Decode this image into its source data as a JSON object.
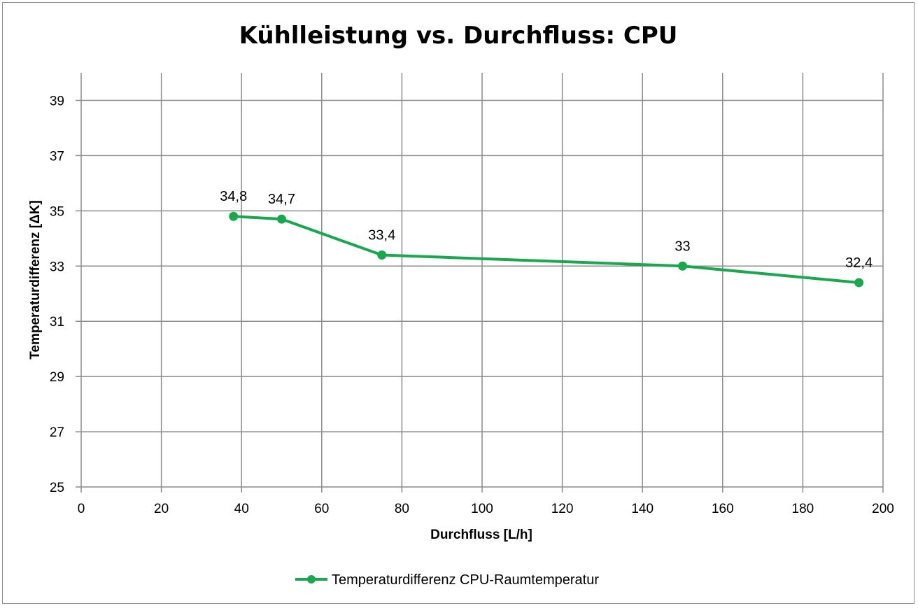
{
  "chart_data": {
    "type": "line",
    "title": "Kühlleistung vs. Durchfluss: CPU",
    "xlabel": "Durchfluss [L/h]",
    "ylabel": "Temperaturdifferenz [ΔK]",
    "xlim": [
      0,
      200
    ],
    "ylim": [
      25,
      40
    ],
    "xticks": [
      0,
      20,
      40,
      60,
      80,
      100,
      120,
      140,
      160,
      180,
      200
    ],
    "yticks": [
      25,
      27,
      29,
      31,
      33,
      35,
      37,
      39
    ],
    "grid": true,
    "legend_position": "bottom",
    "series": [
      {
        "name": "Temperaturdifferenz CPU-Raumtemperatur",
        "color": "#1aa84f",
        "x": [
          38,
          50,
          75,
          150,
          194
        ],
        "y": [
          34.8,
          34.7,
          33.4,
          33,
          32.4
        ],
        "labels": [
          "34,8",
          "34,7",
          "33,4",
          "33",
          "32,4"
        ]
      }
    ]
  }
}
